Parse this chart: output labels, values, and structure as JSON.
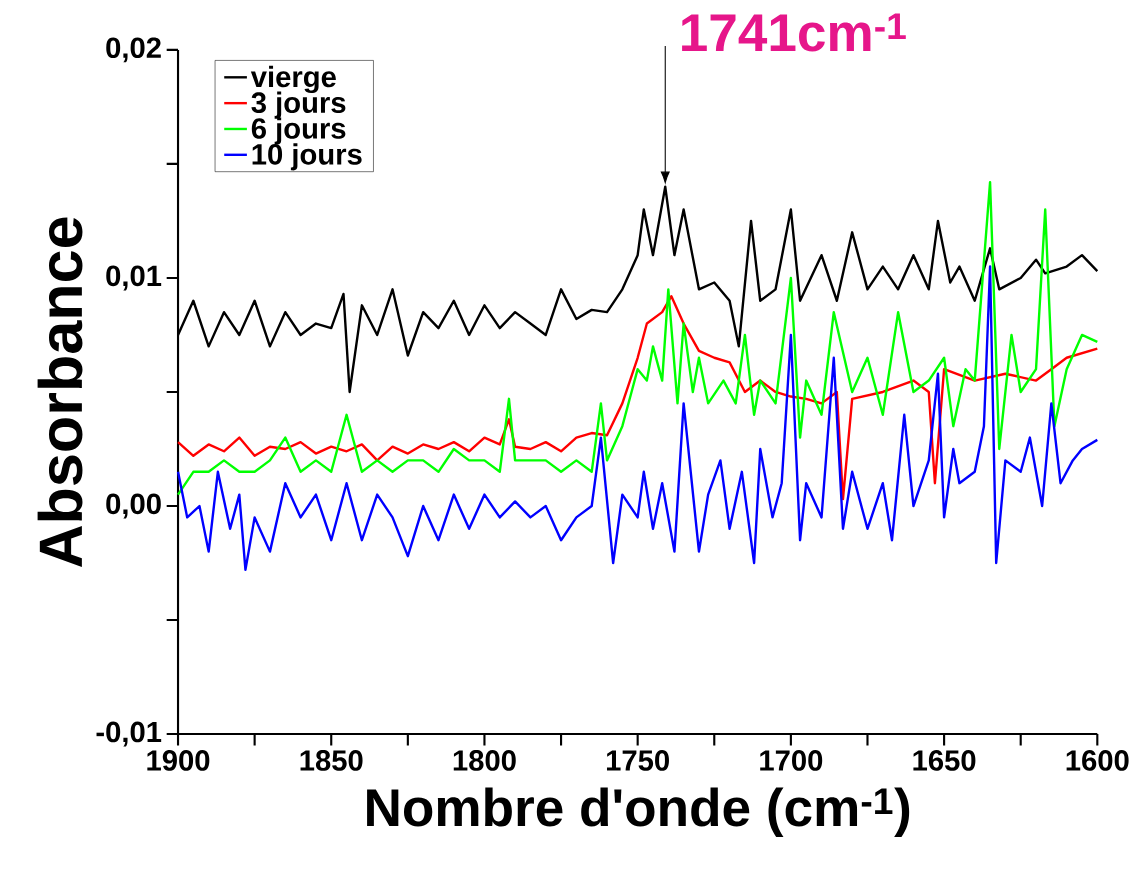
{
  "chart_data": {
    "type": "line",
    "xlabel": "Nombre d'onde (cm$^{-1}$)",
    "ylabel": "Absorbance",
    "xlim": [
      1900,
      1600
    ],
    "ylim": [
      -0.01,
      0.02
    ],
    "xticks": [
      1900,
      {
        "value": 1875,
        "label": null
      },
      1850,
      {
        "value": 1825,
        "label": null
      },
      1800,
      {
        "value": 1775,
        "label": null
      },
      1750,
      {
        "value": 1725,
        "label": null
      },
      1700,
      {
        "value": 1675,
        "label": null
      },
      1650,
      {
        "value": 1625,
        "label": null
      },
      1600
    ],
    "yticks": [
      {
        "value": -0.01,
        "label": "-0,01"
      },
      {
        "value": -0.005,
        "label": null
      },
      {
        "value": 0,
        "label": "0,00"
      },
      {
        "value": 0.005,
        "label": null
      },
      {
        "value": 0.01,
        "label": "0,01"
      },
      {
        "value": 0.015,
        "label": null
      },
      {
        "value": 0.02,
        "label": "0,02"
      }
    ],
    "grid": false,
    "legend": "top left",
    "marker": "none",
    "line_style": "solid",
    "annotations": [
      {
        "text": "1741cm$^{-1}$",
        "x": 1741,
        "y": 0.014
      }
    ],
    "series": [
      {
        "name": "vierge",
        "color": "#000000",
        "x": [
          1900,
          1895,
          1890,
          1885,
          1880,
          1875,
          1870,
          1865,
          1860,
          1855,
          1850,
          1846,
          1844,
          1840,
          1835,
          1830,
          1825,
          1820,
          1815,
          1810,
          1805,
          1800,
          1795,
          1790,
          1785,
          1780,
          1775,
          1770,
          1765,
          1760,
          1755,
          1750,
          1748,
          1745,
          1741,
          1738,
          1735,
          1730,
          1725,
          1720,
          1717,
          1713,
          1710,
          1705,
          1700,
          1697,
          1690,
          1685,
          1680,
          1675,
          1670,
          1665,
          1660,
          1655,
          1652,
          1648,
          1645,
          1640,
          1635,
          1632,
          1625,
          1620,
          1617,
          1610,
          1605,
          1600
        ],
        "values": [
          0.0075,
          0.009,
          0.007,
          0.0085,
          0.0075,
          0.009,
          0.007,
          0.0085,
          0.0075,
          0.008,
          0.0078,
          0.0093,
          0.005,
          0.0088,
          0.0075,
          0.0095,
          0.0066,
          0.0085,
          0.0078,
          0.009,
          0.0075,
          0.0088,
          0.0078,
          0.0085,
          0.008,
          0.0075,
          0.0095,
          0.0082,
          0.0086,
          0.0085,
          0.0095,
          0.011,
          0.013,
          0.011,
          0.014,
          0.011,
          0.013,
          0.0095,
          0.0098,
          0.009,
          0.007,
          0.0125,
          0.009,
          0.0095,
          0.013,
          0.009,
          0.011,
          0.009,
          0.012,
          0.0095,
          0.0105,
          0.0095,
          0.011,
          0.0095,
          0.0125,
          0.0098,
          0.0105,
          0.009,
          0.0113,
          0.0095,
          0.01,
          0.0108,
          0.0102,
          0.0105,
          0.011,
          0.0103
        ]
      },
      {
        "name": "3 jours",
        "color": "#ff0000",
        "x": [
          1900,
          1895,
          1890,
          1885,
          1880,
          1875,
          1870,
          1865,
          1860,
          1855,
          1850,
          1845,
          1840,
          1835,
          1830,
          1825,
          1820,
          1815,
          1810,
          1805,
          1800,
          1795,
          1792,
          1790,
          1785,
          1780,
          1775,
          1770,
          1765,
          1760,
          1755,
          1750,
          1747,
          1742,
          1739,
          1735,
          1730,
          1725,
          1720,
          1715,
          1710,
          1705,
          1700,
          1695,
          1690,
          1685,
          1683,
          1680,
          1670,
          1660,
          1655,
          1653,
          1650,
          1640,
          1630,
          1620,
          1615,
          1610,
          1600
        ],
        "values": [
          0.0028,
          0.0022,
          0.0027,
          0.0024,
          0.003,
          0.0022,
          0.0026,
          0.0025,
          0.0028,
          0.0023,
          0.0026,
          0.0024,
          0.0027,
          0.002,
          0.0026,
          0.0023,
          0.0027,
          0.0025,
          0.0028,
          0.0024,
          0.003,
          0.0027,
          0.0038,
          0.0026,
          0.0025,
          0.0028,
          0.0024,
          0.003,
          0.0032,
          0.0031,
          0.0045,
          0.0065,
          0.008,
          0.0085,
          0.0092,
          0.008,
          0.0068,
          0.0065,
          0.0063,
          0.005,
          0.0055,
          0.005,
          0.0048,
          0.0047,
          0.0045,
          0.005,
          0.0003,
          0.0047,
          0.005,
          0.0055,
          0.005,
          0.001,
          0.006,
          0.0055,
          0.0058,
          0.0055,
          0.006,
          0.0065,
          0.0069
        ]
      },
      {
        "name": "6 jours",
        "color": "#00ff00",
        "x": [
          1900,
          1895,
          1890,
          1885,
          1880,
          1875,
          1870,
          1865,
          1860,
          1855,
          1850,
          1845,
          1840,
          1835,
          1830,
          1825,
          1820,
          1815,
          1810,
          1805,
          1800,
          1795,
          1792,
          1790,
          1785,
          1780,
          1775,
          1770,
          1765,
          1762,
          1760,
          1755,
          1752,
          1750,
          1747,
          1745,
          1742,
          1740,
          1737,
          1735,
          1732,
          1730,
          1727,
          1722,
          1718,
          1715,
          1712,
          1710,
          1705,
          1700,
          1697,
          1695,
          1690,
          1686,
          1680,
          1675,
          1670,
          1665,
          1660,
          1655,
          1650,
          1647,
          1643,
          1640,
          1635,
          1632,
          1628,
          1625,
          1620,
          1617,
          1614,
          1610,
          1605,
          1600
        ],
        "values": [
          0.0005,
          0.0015,
          0.0015,
          0.002,
          0.0015,
          0.0015,
          0.002,
          0.003,
          0.0015,
          0.002,
          0.0015,
          0.004,
          0.0015,
          0.002,
          0.0015,
          0.002,
          0.002,
          0.0015,
          0.0025,
          0.002,
          0.002,
          0.0015,
          0.0047,
          0.002,
          0.002,
          0.002,
          0.0015,
          0.002,
          0.0015,
          0.0045,
          0.002,
          0.0035,
          0.005,
          0.006,
          0.0055,
          0.007,
          0.0055,
          0.0095,
          0.0045,
          0.008,
          0.005,
          0.0065,
          0.0045,
          0.0055,
          0.0045,
          0.0075,
          0.004,
          0.0055,
          0.0045,
          0.01,
          0.003,
          0.0055,
          0.004,
          0.0085,
          0.005,
          0.0065,
          0.004,
          0.0085,
          0.005,
          0.0055,
          0.0065,
          0.0035,
          0.006,
          0.0055,
          0.0142,
          0.0025,
          0.0075,
          0.005,
          0.006,
          0.013,
          0.0035,
          0.006,
          0.0075,
          0.0072
        ]
      },
      {
        "name": "10 jours",
        "color": "#0000ff",
        "x": [
          1900,
          1897,
          1893,
          1890,
          1887,
          1883,
          1880,
          1878,
          1875,
          1870,
          1865,
          1860,
          1855,
          1850,
          1845,
          1840,
          1835,
          1830,
          1825,
          1820,
          1815,
          1810,
          1805,
          1800,
          1795,
          1790,
          1785,
          1780,
          1775,
          1770,
          1765,
          1762,
          1758,
          1755,
          1750,
          1748,
          1745,
          1742,
          1738,
          1735,
          1730,
          1727,
          1723,
          1720,
          1716,
          1712,
          1710,
          1706,
          1703,
          1700,
          1697,
          1695,
          1690,
          1686,
          1683,
          1680,
          1675,
          1670,
          1667,
          1663,
          1660,
          1655,
          1652,
          1650,
          1647,
          1645,
          1640,
          1637,
          1635,
          1633,
          1630,
          1625,
          1622,
          1618,
          1615,
          1612,
          1608,
          1605,
          1600
        ],
        "values": [
          0.0015,
          -0.0005,
          0,
          -0.002,
          0.0015,
          -0.001,
          0.0005,
          -0.0028,
          -0.0005,
          -0.002,
          0.001,
          -0.0005,
          0.0005,
          -0.0015,
          0.001,
          -0.0015,
          0.0005,
          -0.0005,
          -0.0022,
          0,
          -0.0015,
          0.0005,
          -0.001,
          0.0005,
          -0.0005,
          0.0002,
          -0.0005,
          0,
          -0.0015,
          -0.0005,
          0,
          0.003,
          -0.0025,
          0.0005,
          -0.0005,
          0.0015,
          -0.001,
          0.001,
          -0.002,
          0.0045,
          -0.002,
          0.0005,
          0.002,
          -0.001,
          0.0015,
          -0.0025,
          0.0025,
          -0.0005,
          0.001,
          0.0075,
          -0.0015,
          0.001,
          -0.0005,
          0.0065,
          -0.001,
          0.0015,
          -0.001,
          0.001,
          -0.0015,
          0.004,
          0,
          0.002,
          0.0058,
          -0.0005,
          0.0025,
          0.001,
          0.0015,
          0.0035,
          0.0105,
          -0.0025,
          0.002,
          0.0015,
          0.003,
          0,
          0.0045,
          0.001,
          0.002,
          0.0025,
          0.0029
        ]
      }
    ]
  }
}
